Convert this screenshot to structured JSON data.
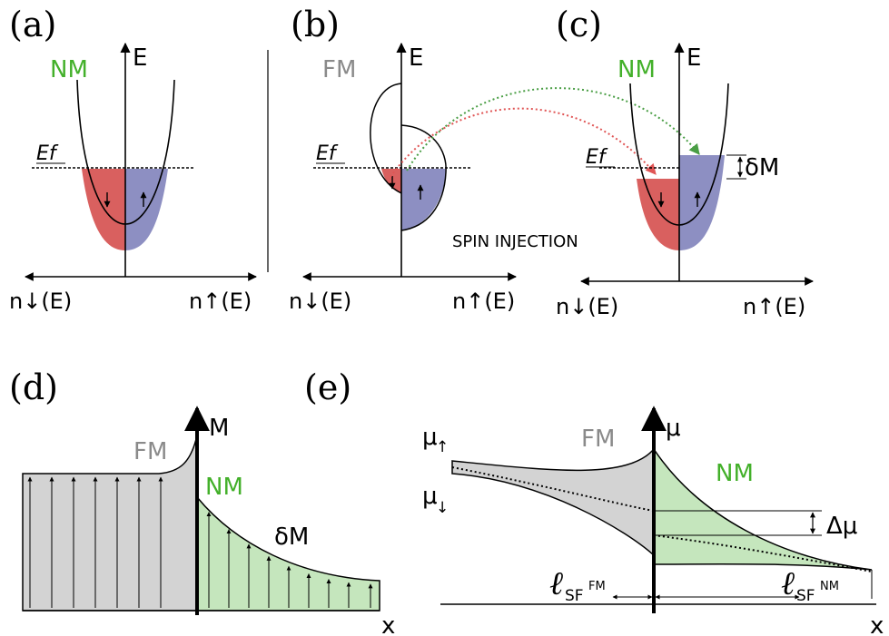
{
  "colors": {
    "spin_down_fill": "#d9605f",
    "spin_up_fill": "#8d8fc2",
    "nm_green": "#43b02a",
    "nm_fill": "#c5e6bd",
    "fm_gray": "#8a8a8a",
    "fm_fill": "#d3d3d3",
    "red_arrow": "#e05555",
    "green_arrow": "#4a9e45"
  },
  "panels": {
    "a": {
      "label": "(a)",
      "material": "NM",
      "energy_axis": "E",
      "fermi_label": "Ef",
      "axis_left": "n↓(E)",
      "axis_right": "n↑(E)",
      "spin_down_symbol": "↓",
      "spin_up_symbol": "↑"
    },
    "b": {
      "label": "(b)",
      "material": "FM",
      "energy_axis": "E",
      "fermi_label": "Ef",
      "axis_left": "n↓(E)",
      "axis_right": "n↑(E)",
      "spin_down_symbol": "↓",
      "spin_up_symbol": "↑"
    },
    "c": {
      "label": "(c)",
      "material": "NM",
      "energy_axis": "E",
      "fermi_label": "Ef",
      "axis_left": "n↓(E)",
      "axis_right": "n↑(E)",
      "delta_label": "δM",
      "spin_down_symbol": "↓",
      "spin_up_symbol": "↑"
    },
    "injection_label": "SPIN INJECTION",
    "d": {
      "label": "(d)",
      "fm_label": "FM",
      "nm_label": "NM",
      "y_axis": "M",
      "x_axis": "x",
      "delta_label": "δM"
    },
    "e": {
      "label": "(e)",
      "fm_label": "FM",
      "nm_label": "NM",
      "y_axis": "μ",
      "x_axis": "x",
      "mu_up": "μ",
      "mu_up_arrow": "↑",
      "mu_down": "μ",
      "mu_down_arrow": "↓",
      "delta_mu": "Δμ",
      "ell_symbol": "ℓ",
      "ell_fm_sub": "SF",
      "ell_fm_sup": "FM",
      "ell_nm_sub": "SF",
      "ell_nm_sup": "NM"
    }
  }
}
